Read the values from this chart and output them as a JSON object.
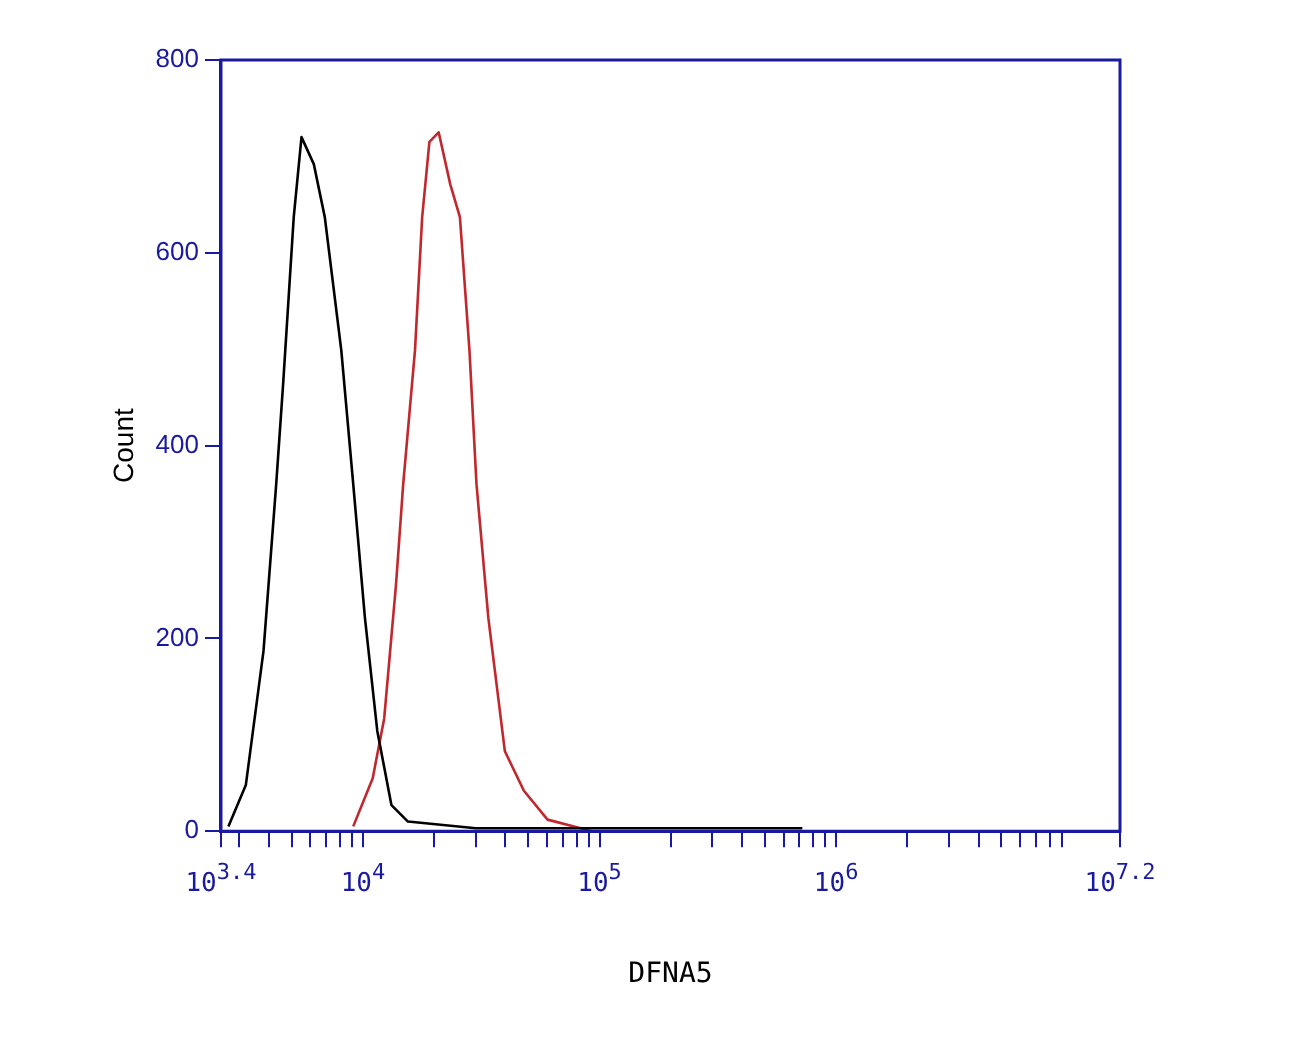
{
  "chart_data": {
    "type": "line",
    "xlabel": "DFNA5",
    "ylabel": "Count",
    "log": "x",
    "xlim": [
      2512,
      15848932
    ],
    "xticks": [
      {
        "value": 2512,
        "label": "10$^{3.4}$"
      },
      {
        "value": 3000,
        "label": null
      },
      {
        "value": 4000,
        "label": null
      },
      {
        "value": 5000,
        "label": null
      },
      {
        "value": 6000,
        "label": null
      },
      {
        "value": 7000,
        "label": null
      },
      {
        "value": 8000,
        "label": null
      },
      {
        "value": 9000,
        "label": null
      },
      {
        "value": 10000,
        "label": "10$^{4}$"
      },
      {
        "value": 20000,
        "label": null
      },
      {
        "value": 30000,
        "label": null
      },
      {
        "value": 40000,
        "label": null
      },
      {
        "value": 50000,
        "label": null
      },
      {
        "value": 60000,
        "label": null
      },
      {
        "value": 70000,
        "label": null
      },
      {
        "value": 80000,
        "label": null
      },
      {
        "value": 90000,
        "label": null
      },
      {
        "value": 100000,
        "label": "10$^{5}$"
      },
      {
        "value": 200000,
        "label": null
      },
      {
        "value": 300000,
        "label": null
      },
      {
        "value": 400000,
        "label": null
      },
      {
        "value": 500000,
        "label": null
      },
      {
        "value": 600000,
        "label": null
      },
      {
        "value": 700000,
        "label": null
      },
      {
        "value": 800000,
        "label": null
      },
      {
        "value": 900000,
        "label": null
      },
      {
        "value": 1000000,
        "label": "10$^{6}$"
      },
      {
        "value": 2000000,
        "label": null
      },
      {
        "value": 3000000,
        "label": null
      },
      {
        "value": 4000000,
        "label": null
      },
      {
        "value": 5000000,
        "label": null
      },
      {
        "value": 6000000,
        "label": null
      },
      {
        "value": 7000000,
        "label": null
      },
      {
        "value": 8000000,
        "label": null
      },
      {
        "value": 9000000,
        "label": null
      },
      {
        "value": 15848932,
        "label": "10$^{7.2}$"
      }
    ],
    "ylim": [
      0,
      800
    ],
    "yticks": [
      0,
      200,
      400,
      600,
      800
    ],
    "series": [
      {
        "color": "#000000",
        "x": [
          2700,
          3200,
          3800,
          4300,
          4600,
          5100,
          5500,
          6200,
          6900,
          8100,
          9100,
          10200,
          11500,
          13200,
          15500,
          30000,
          93000,
          720000
        ],
        "values": [
          5,
          48,
          187,
          360,
          464,
          637,
          720,
          692,
          637,
          499,
          360,
          221,
          104,
          27,
          10,
          3,
          3,
          3
        ]
      },
      {
        "color": "#c0282d",
        "x": [
          9100,
          11000,
          12300,
          13800,
          14800,
          16600,
          17800,
          19100,
          20900,
          23400,
          25700,
          28200,
          30200,
          33900,
          39800,
          47900,
          60300,
          93000
        ],
        "values": [
          5,
          55,
          117,
          256,
          360,
          499,
          637,
          715,
          725,
          671,
          637,
          499,
          360,
          221,
          83,
          42,
          12,
          0
        ]
      }
    ]
  }
}
